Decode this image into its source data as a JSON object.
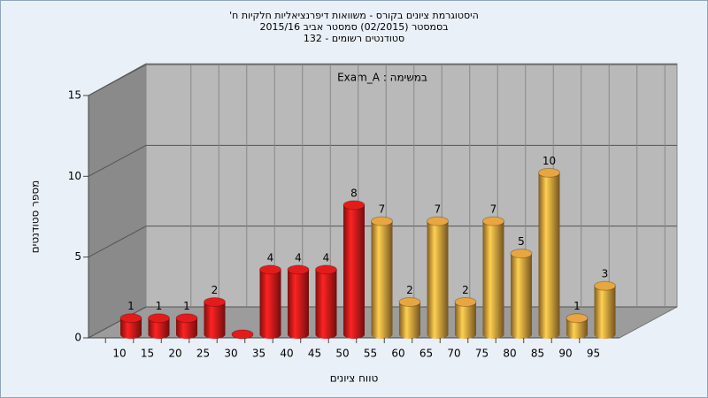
{
  "chart_data": {
    "type": "bar3d",
    "title": [
      "היסטוגרמת ציונים בקורס - משוואות דיפרנציאליות חלקיות ח'",
      "בסמסטר  (02/2015)  סמסטר אביב 2015/16",
      "סטודנטים רשומים - 132"
    ],
    "annotation": "במשימה : Exam_A",
    "x_label": "טווח ציונים",
    "y_label": "מספר סטודנטים",
    "categories": [
      "10",
      "15",
      "20",
      "25",
      "30",
      "35",
      "40",
      "45",
      "50",
      "55",
      "60",
      "65",
      "70",
      "75",
      "80",
      "85",
      "90",
      "95"
    ],
    "values": [
      1,
      1,
      1,
      2,
      0,
      4,
      4,
      4,
      8,
      7,
      2,
      7,
      2,
      7,
      5,
      10,
      1,
      3
    ],
    "colors": [
      "#e41b1b",
      "#e41b1b",
      "#e41b1b",
      "#e41b1b",
      "#e41b1b",
      "#e41b1b",
      "#e41b1b",
      "#e41b1b",
      "#e41b1b",
      "#e8a640",
      "#e8a640",
      "#e8a640",
      "#e8a640",
      "#e8a640",
      "#e8a640",
      "#e8a640",
      "#e8a640",
      "#e8a640"
    ],
    "ylim": [
      0,
      15
    ],
    "yticks": [
      0,
      5,
      10,
      15
    ],
    "grid": true
  }
}
